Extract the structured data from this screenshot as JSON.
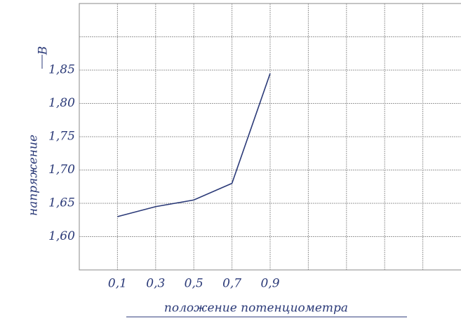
{
  "chart_data": {
    "type": "line",
    "y_label": "напряжение",
    "y_unit": "B",
    "x_label": "положение потенциометра",
    "x": [
      0.1,
      0.3,
      0.5,
      0.7,
      0.9
    ],
    "values": [
      1.63,
      1.645,
      1.655,
      1.68,
      1.845
    ],
    "color": "#2b3a78",
    "xlim": [
      -0.1,
      1.9
    ],
    "ylim": [
      1.55,
      1.95
    ],
    "xticks": [
      {
        "value": 0.1,
        "label": "0,1"
      },
      {
        "value": 0.3,
        "label": "0,3"
      },
      {
        "value": 0.5,
        "label": "0,5"
      },
      {
        "value": 0.7,
        "label": "0,7"
      },
      {
        "value": 0.9,
        "label": "0,9"
      }
    ],
    "yticks": [
      {
        "value": 1.6,
        "label": "1,60"
      },
      {
        "value": 1.65,
        "label": "1,65"
      },
      {
        "value": 1.7,
        "label": "1,70"
      },
      {
        "value": 1.75,
        "label": "1,75"
      },
      {
        "value": 1.8,
        "label": "1,80"
      },
      {
        "value": 1.85,
        "label": "1,85"
      }
    ],
    "grid": true
  }
}
